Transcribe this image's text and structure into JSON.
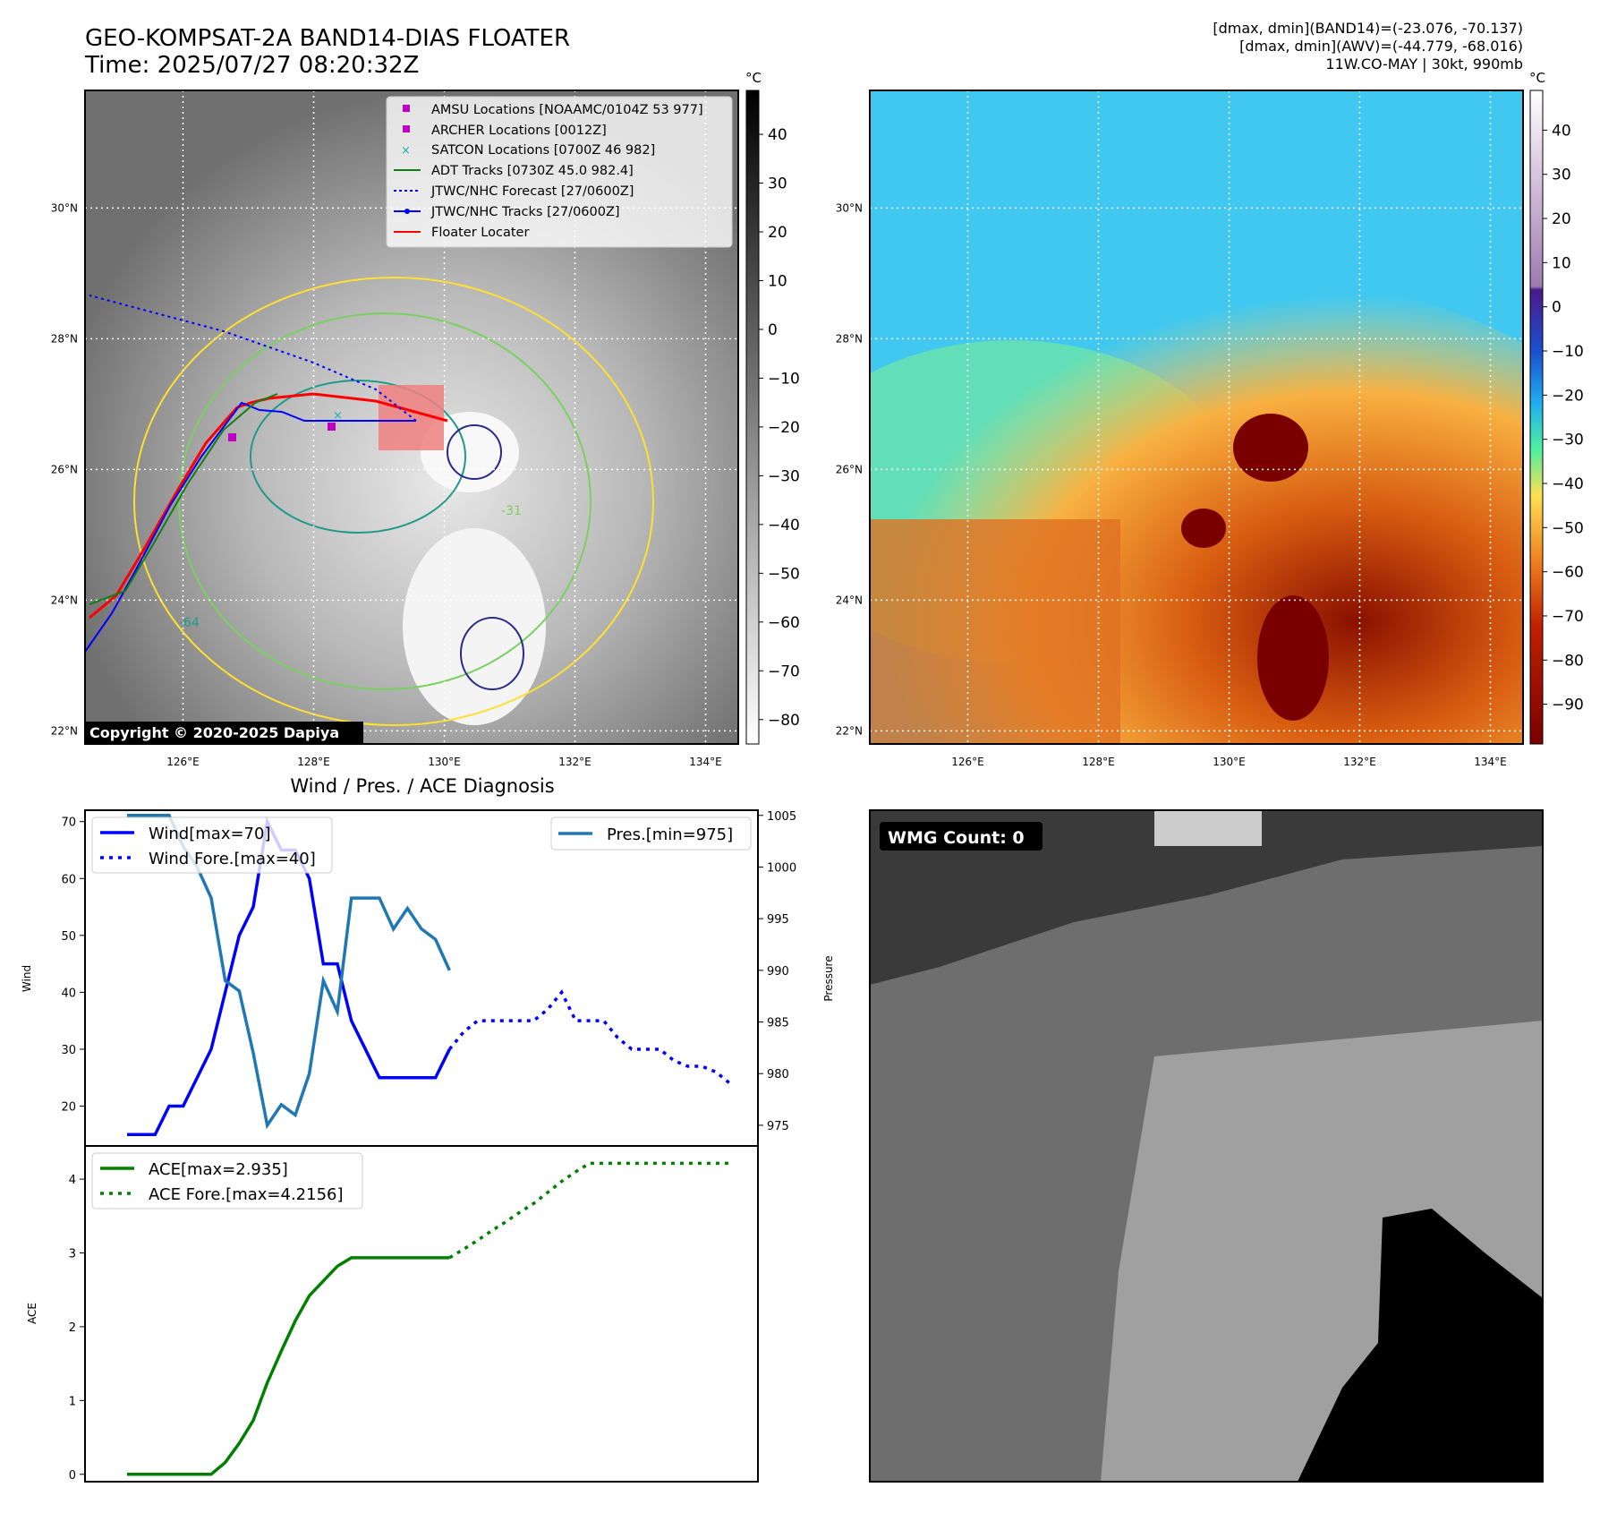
{
  "header": {
    "title_line1": "GEO-KOMPSAT-2A BAND14-DIAS FLOATER",
    "title_line2": "Time: 2025/07/27 08:20:32Z",
    "meta_line1": "[dmax, dmin](BAND14)=(-23.076, -70.137)",
    "meta_line2": "[dmax, dmin](AWV)=(-44.779, -68.016)",
    "meta_line3": "11W.CO-MAY | 30kt, 990mb"
  },
  "map_axes": {
    "lon_ticks": [
      "126°E",
      "128°E",
      "130°E",
      "132°E",
      "134°E"
    ],
    "lat_ticks": [
      "30°N",
      "28°N",
      "26°N",
      "24°N",
      "22°N"
    ],
    "lon_range": [
      124.5,
      134.5
    ],
    "lat_range": [
      21.8,
      31.8
    ]
  },
  "ir_panel": {
    "legend": [
      "AMSU Locations [NOAAMC/0104Z 53 977]",
      "ARCHER Locations [0012Z]",
      "SATCON Locations [0700Z 46 982]",
      "ADT Tracks [0730Z 45.0 982.4]",
      "JTWC/NHC Forecast [27/0600Z]",
      "JTWC/NHC Tracks [27/0600Z]",
      "Floater Locater"
    ],
    "colorbar_unit": "°C",
    "colorbar_ticks": [
      "40",
      "30",
      "20",
      "10",
      "0",
      "−10",
      "−20",
      "−30",
      "−40",
      "−50",
      "−60",
      "−70",
      "−80"
    ],
    "copyright": "Copyright © 2020-2025 Dapiya",
    "contour_labels": [
      "-31",
      "-64"
    ],
    "colors": {
      "amsu": "#c000c0",
      "archer": "#c000c0",
      "satcon": "#20b0b0",
      "adt": "#108010",
      "jtwc": "#0000ff",
      "floater": "#ff0000"
    }
  },
  "awv_panel": {
    "colorbar_unit": "°C",
    "colorbar_ticks": [
      "40",
      "30",
      "20",
      "10",
      "0",
      "−10",
      "−20",
      "−30",
      "−40",
      "−50",
      "−60",
      "−70",
      "−80",
      "−90"
    ]
  },
  "wmg_panel": {
    "label": "WMG Count: 0"
  },
  "chart_data": [
    {
      "type": "line",
      "title": "Wind / Pres. / ACE Diagnosis",
      "ylabel": "Wind",
      "ylabel_right": "Pressure",
      "ylim": [
        13,
        72
      ],
      "ylim_right": [
        973,
        1005.5
      ],
      "yticks": [
        20,
        30,
        40,
        50,
        60,
        70
      ],
      "yticks_right": [
        975,
        980,
        985,
        990,
        995,
        1000,
        1005
      ],
      "x": [
        0,
        1,
        2,
        3,
        4,
        5,
        6,
        7,
        8,
        9,
        10,
        11,
        12,
        13,
        14,
        15,
        16,
        17,
        18,
        19,
        20,
        21,
        22,
        23,
        24,
        25,
        26,
        27,
        28,
        29,
        30,
        31,
        32,
        33,
        34,
        35,
        36,
        37,
        38,
        39,
        40,
        41,
        42,
        43
      ],
      "series": [
        {
          "name": "Wind[max=70]",
          "x": [
            0,
            1,
            2,
            3,
            4,
            5,
            6,
            7,
            8,
            9,
            10,
            11,
            12,
            13,
            14,
            15,
            16,
            17,
            18,
            19,
            20,
            21,
            22,
            23
          ],
          "values": [
            15,
            15,
            15,
            20,
            20,
            25,
            30,
            40,
            50,
            55,
            70,
            65,
            65,
            60,
            45,
            45,
            35,
            30,
            25,
            25,
            25,
            25,
            25,
            30
          ]
        },
        {
          "name": "Wind Fore.[max=40]",
          "x": [
            23,
            24,
            25,
            26,
            27,
            28,
            29,
            30,
            31,
            32,
            33,
            34,
            35,
            36,
            37,
            38,
            39,
            40,
            41,
            42,
            43
          ],
          "values": [
            30,
            33,
            35,
            35,
            35,
            35,
            35,
            37,
            40,
            35,
            35,
            35,
            32,
            30,
            30,
            30,
            28,
            27,
            27,
            26,
            24
          ]
        },
        {
          "name": "Pres.[min=975]",
          "axis": "right",
          "x": [
            0,
            1,
            2,
            3,
            4,
            5,
            6,
            7,
            8,
            9,
            10,
            11,
            12,
            13,
            14,
            15,
            16,
            17,
            18,
            19,
            20,
            21,
            22,
            23
          ],
          "values": [
            1005,
            1005,
            1005,
            1005,
            1002,
            1000,
            997,
            989,
            988,
            982,
            975,
            977,
            976,
            980,
            989,
            986,
            997,
            997,
            997,
            994,
            996,
            994,
            993,
            990
          ]
        }
      ]
    },
    {
      "type": "line",
      "ylabel": "ACE",
      "ylim": [
        -0.1,
        4.45
      ],
      "yticks": [
        0,
        1,
        2,
        3,
        4
      ],
      "series": [
        {
          "name": "ACE[max=2.935]",
          "x": [
            0,
            1,
            2,
            3,
            4,
            5,
            6,
            7,
            8,
            9,
            10,
            11,
            12,
            13,
            14,
            15,
            16,
            17,
            18,
            19,
            20,
            21,
            22,
            23
          ],
          "values": [
            0,
            0,
            0,
            0,
            0,
            0,
            0,
            0.16,
            0.42,
            0.73,
            1.24,
            1.67,
            2.08,
            2.42,
            2.62,
            2.82,
            2.935,
            2.935,
            2.935,
            2.935,
            2.935,
            2.935,
            2.935,
            2.935
          ]
        },
        {
          "name": "ACE Fore.[max=4.2156]",
          "x": [
            23,
            24,
            25,
            26,
            27,
            28,
            29,
            30,
            31,
            32,
            33,
            34,
            35,
            36,
            37,
            38,
            39,
            40,
            41,
            42,
            43
          ],
          "values": [
            2.935,
            3.05,
            3.17,
            3.3,
            3.42,
            3.55,
            3.67,
            3.82,
            3.97,
            4.1,
            4.2156,
            4.2156,
            4.2156,
            4.2156,
            4.2156,
            4.2156,
            4.2156,
            4.2156,
            4.2156,
            4.2156,
            4.2156
          ]
        }
      ]
    }
  ]
}
